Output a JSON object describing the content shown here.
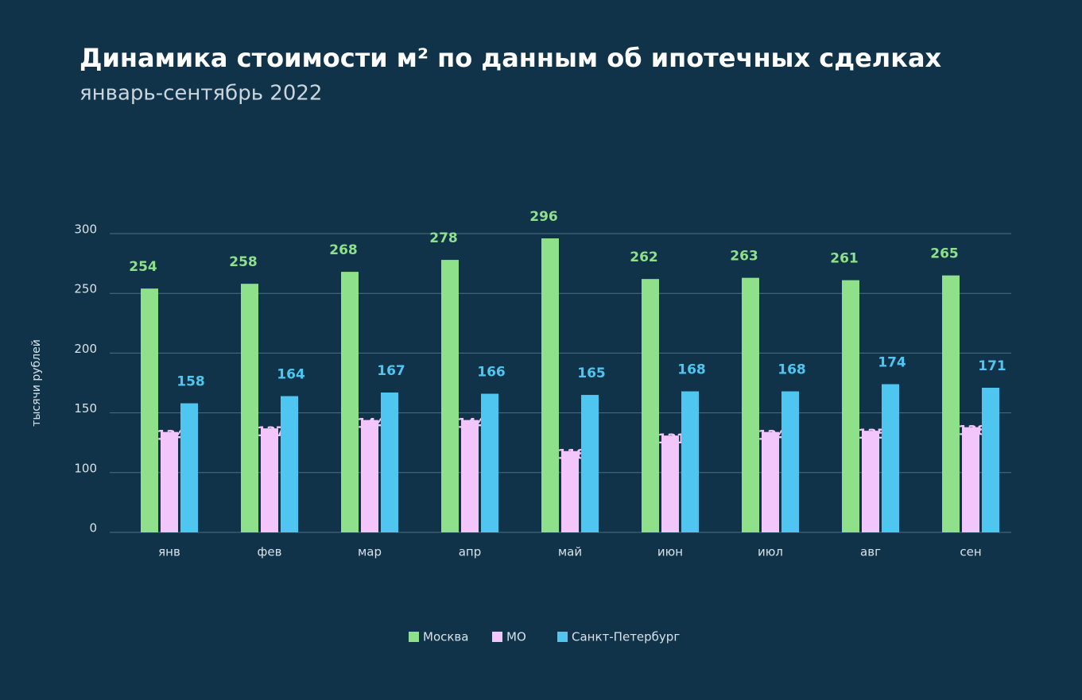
{
  "chart_data": {
    "type": "bar",
    "title": "Динамика стоимости м² по данным об ипотечных сделках",
    "subtitle": "январь-сентябрь 2022",
    "y_label": "тысячи рублей",
    "categories": [
      "янв",
      "фев",
      "мар",
      "апр",
      "май",
      "июн",
      "июл",
      "авг",
      "сен"
    ],
    "series": [
      {
        "name": "Москва",
        "color": "#8fe08a",
        "values": [
          254,
          258,
          268,
          278,
          296,
          262,
          263,
          261,
          265
        ]
      },
      {
        "name": "МО",
        "color": "#f2c6fa",
        "values": [
          134,
          137,
          144,
          144,
          118,
          131,
          134,
          135,
          138
        ]
      },
      {
        "name": "Санкт-Петербург",
        "color": "#4fc6ef",
        "values": [
          158,
          164,
          167,
          166,
          165,
          168,
          168,
          174,
          171
        ]
      }
    ],
    "ylim": [
      0,
      300
    ],
    "yticks": [
      0,
      100,
      150,
      200,
      250,
      300
    ],
    "grid": true
  }
}
